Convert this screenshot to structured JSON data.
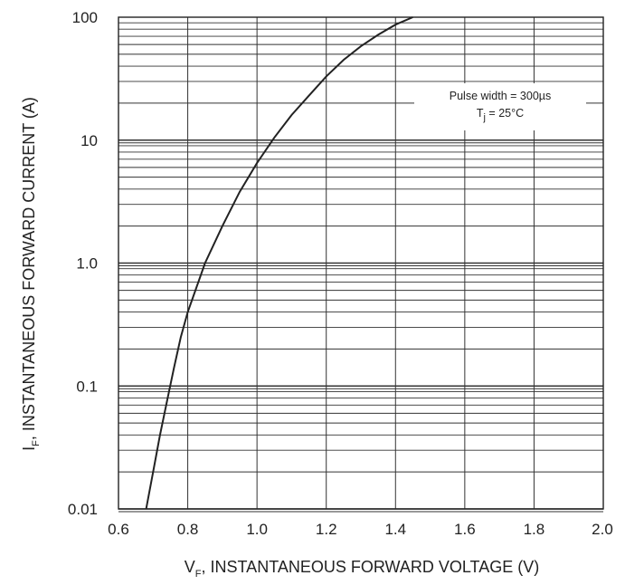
{
  "chart_data": {
    "type": "line",
    "title": "",
    "xlabel": {
      "prefix": "V",
      "sub": "F",
      "rest": ", INSTANTANEOUS FORWARD VOLTAGE (V)"
    },
    "ylabel": {
      "prefix": "I",
      "sub": "F",
      "rest": ", INSTANTANEOUS FORWARD CURRENT (A)"
    },
    "x_scale": "linear",
    "y_scale": "log",
    "xlim": [
      0.6,
      2.0
    ],
    "ylim": [
      0.01,
      100
    ],
    "x_ticks": [
      "0.6",
      "0.8",
      "1.0",
      "1.2",
      "1.4",
      "1.6",
      "1.8",
      "2.0"
    ],
    "y_ticks": [
      "0.01",
      "0.1",
      "1.0",
      "10",
      "100"
    ],
    "grid": true,
    "annotations": [
      {
        "text": "Pulse width = 300µs"
      },
      {
        "prefix": "T",
        "sub": "j",
        "rest": " = 25°C"
      }
    ],
    "series": [
      {
        "x": [
          0.68,
          0.7,
          0.72,
          0.74,
          0.76,
          0.78,
          0.8,
          0.85,
          0.9,
          0.95,
          1.0,
          1.05,
          1.1,
          1.15,
          1.2,
          1.25,
          1.3,
          1.35,
          1.4,
          1.45
        ],
        "y": [
          0.01,
          0.02,
          0.04,
          0.075,
          0.14,
          0.25,
          0.4,
          1.0,
          2.0,
          3.8,
          6.5,
          10.5,
          16,
          23,
          33,
          45,
          58,
          72,
          87,
          100
        ]
      }
    ]
  }
}
